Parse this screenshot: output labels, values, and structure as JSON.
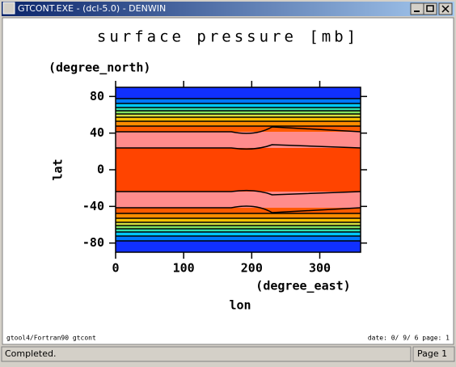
{
  "window": {
    "title": "GTCONT.EXE - (dcl-5.0) - DENWIN",
    "status": "Completed.",
    "page": "Page 1",
    "footer_left": "gtool4/Fortran90 gtcont",
    "footer_right": "date: 0/ 9/ 6 page: 1"
  },
  "chart_data": {
    "type": "contour",
    "title": "surface pressure [mb]",
    "xlabel": "lon",
    "xunit": "(degree_east)",
    "ylabel": "lat",
    "yunit": "(degree_north)",
    "xlim": [
      0,
      360
    ],
    "ylim": [
      -90,
      90
    ],
    "xticks": [
      0,
      100,
      200,
      300
    ],
    "yticks": [
      -80,
      -40,
      0,
      40,
      80
    ]
  }
}
